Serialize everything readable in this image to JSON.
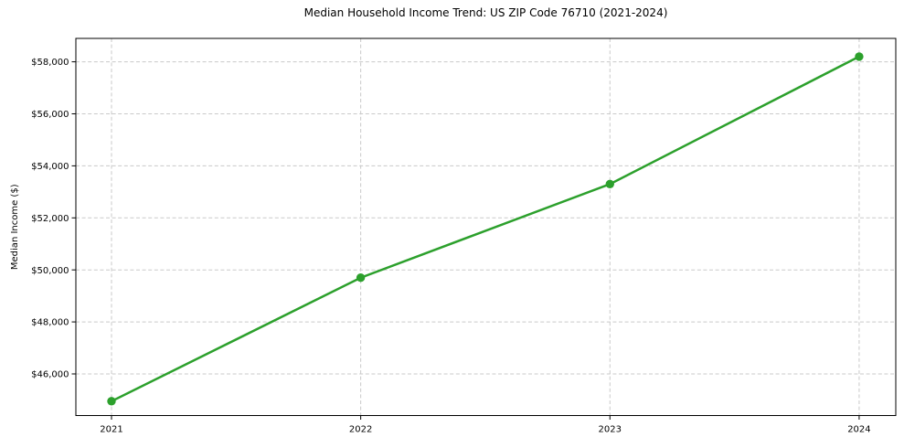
{
  "chart_data": {
    "type": "line",
    "title": "Median Household Income Trend: US ZIP Code 76710 (2021-2024)",
    "xlabel": "",
    "ylabel": "Median Income ($)",
    "x": [
      2021,
      2022,
      2023,
      2024
    ],
    "values": [
      44950,
      49700,
      53300,
      58200
    ],
    "series_name": "Median Household Income",
    "x_tick_labels": [
      "2021",
      "2022",
      "2023",
      "2024"
    ],
    "y_ticks": [
      46000,
      48000,
      50000,
      52000,
      54000,
      56000,
      58000
    ],
    "y_tick_labels": [
      "$46,000",
      "$48,000",
      "$50,000",
      "$52,000",
      "$54,000",
      "$56,000",
      "$58,000"
    ],
    "xlim": [
      2020.857,
      2024.147
    ],
    "ylim": [
      44400,
      58900
    ],
    "grid": true,
    "grid_style": "dashed",
    "legend": false,
    "line_color": "#2ca02c",
    "marker": "circle",
    "marker_color": "#2ca02c",
    "background_color": "#ffffff",
    "grid_color": "#c9c9c9",
    "axis_color": "#000000",
    "text_color": "#000000"
  }
}
